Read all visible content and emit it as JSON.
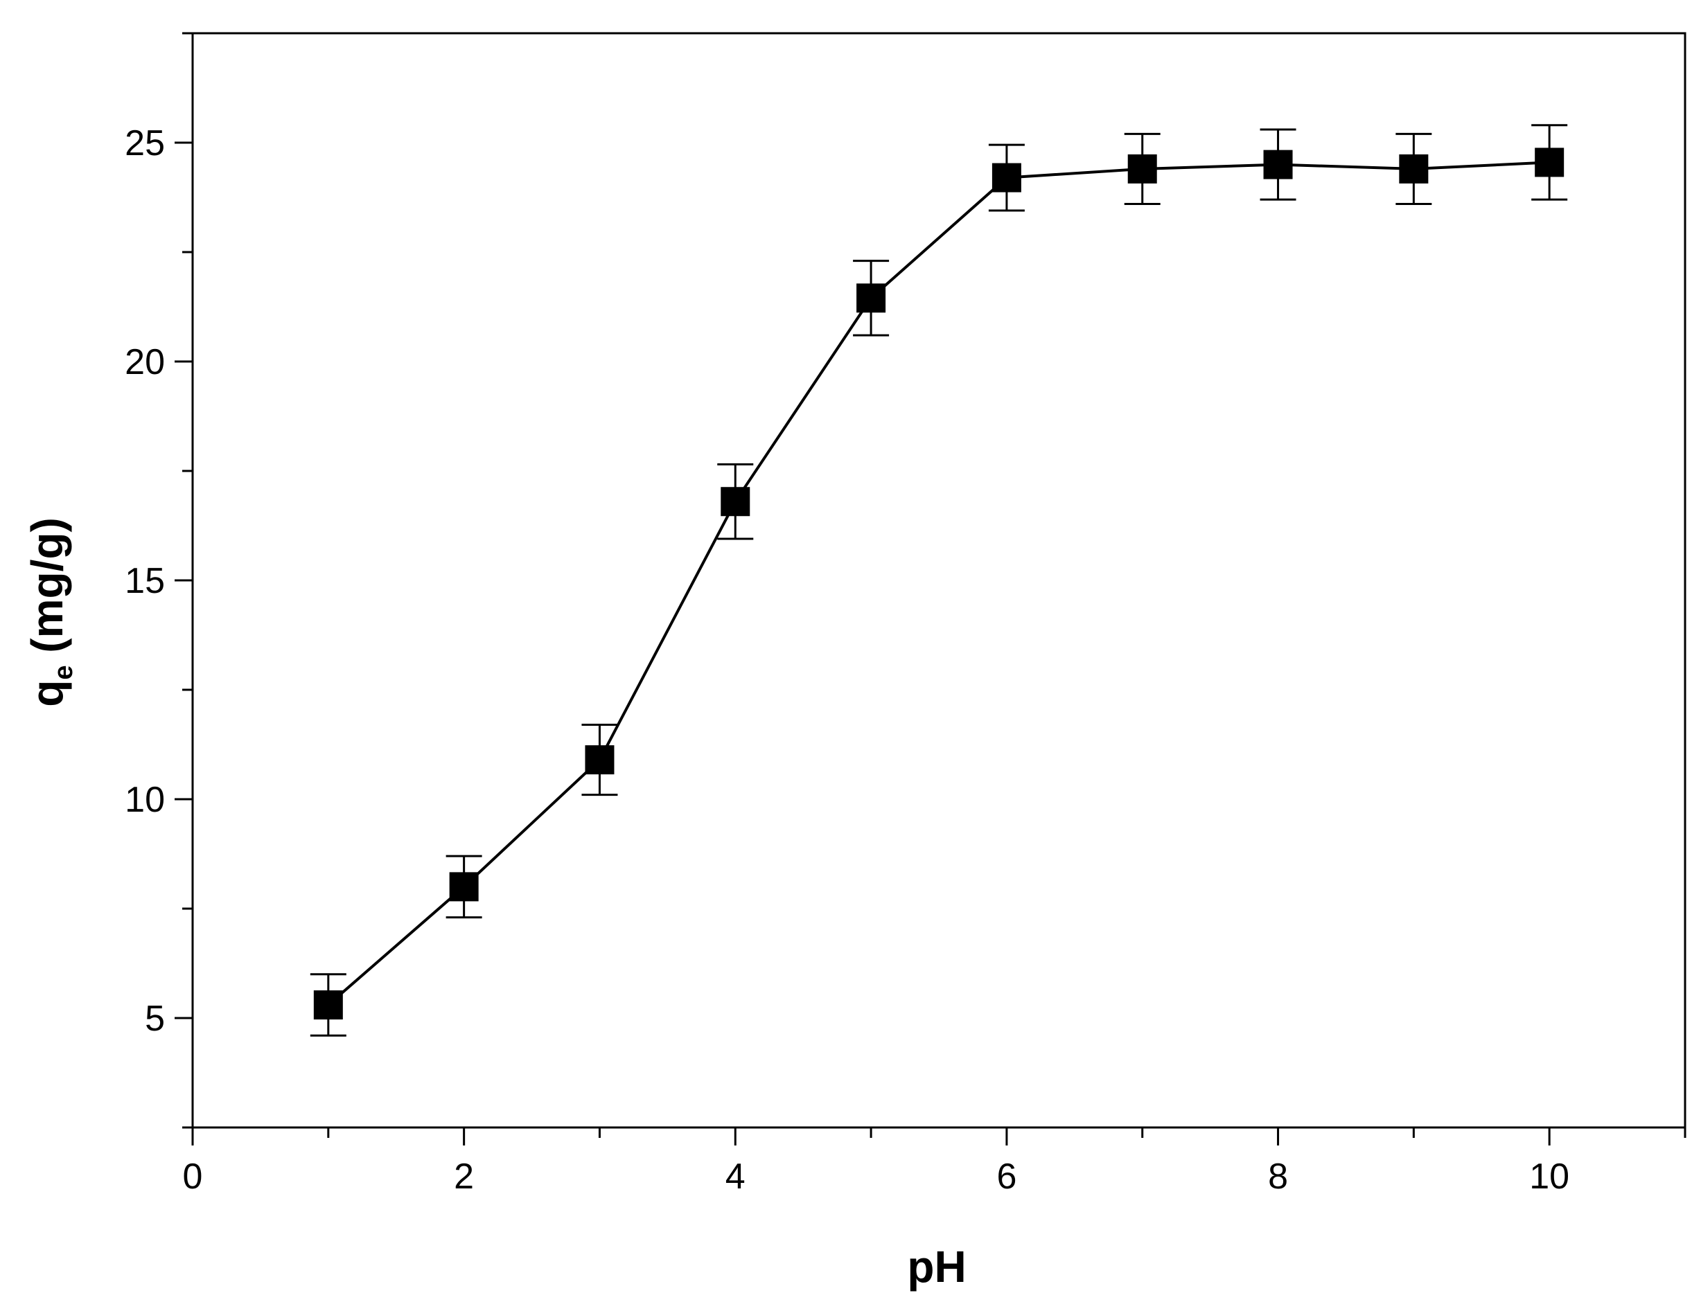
{
  "chart_data": {
    "type": "line",
    "title": "",
    "xlabel": "pH",
    "ylabel": {
      "main": "q",
      "subscript": "e",
      "unit": " (mg/g)"
    },
    "xlim": [
      0,
      11
    ],
    "ylim": [
      2.5,
      27.5
    ],
    "x_major_ticks": [
      0,
      2,
      4,
      6,
      8,
      10
    ],
    "x_minor_ticks": [
      1,
      3,
      5,
      7,
      9,
      11
    ],
    "y_major_ticks": [
      5,
      10,
      15,
      20,
      25
    ],
    "y_minor_ticks": [
      2.5,
      7.5,
      12.5,
      17.5,
      22.5,
      27.5
    ],
    "x_tick_labels": [
      "0",
      "2",
      "4",
      "6",
      "8",
      "10"
    ],
    "y_tick_labels": [
      "5",
      "10",
      "15",
      "20",
      "25"
    ],
    "grid": false,
    "legend": "none",
    "series": [
      {
        "marker": "square",
        "color": "#000000",
        "x": [
          1,
          2,
          3,
          4,
          5,
          6,
          7,
          8,
          9,
          10
        ],
        "y": [
          5.3,
          8.0,
          10.9,
          16.8,
          21.45,
          24.2,
          24.4,
          24.5,
          24.4,
          24.55
        ],
        "error": [
          0.7,
          0.7,
          0.8,
          0.85,
          0.85,
          0.75,
          0.8,
          0.8,
          0.8,
          0.85
        ]
      }
    ]
  }
}
